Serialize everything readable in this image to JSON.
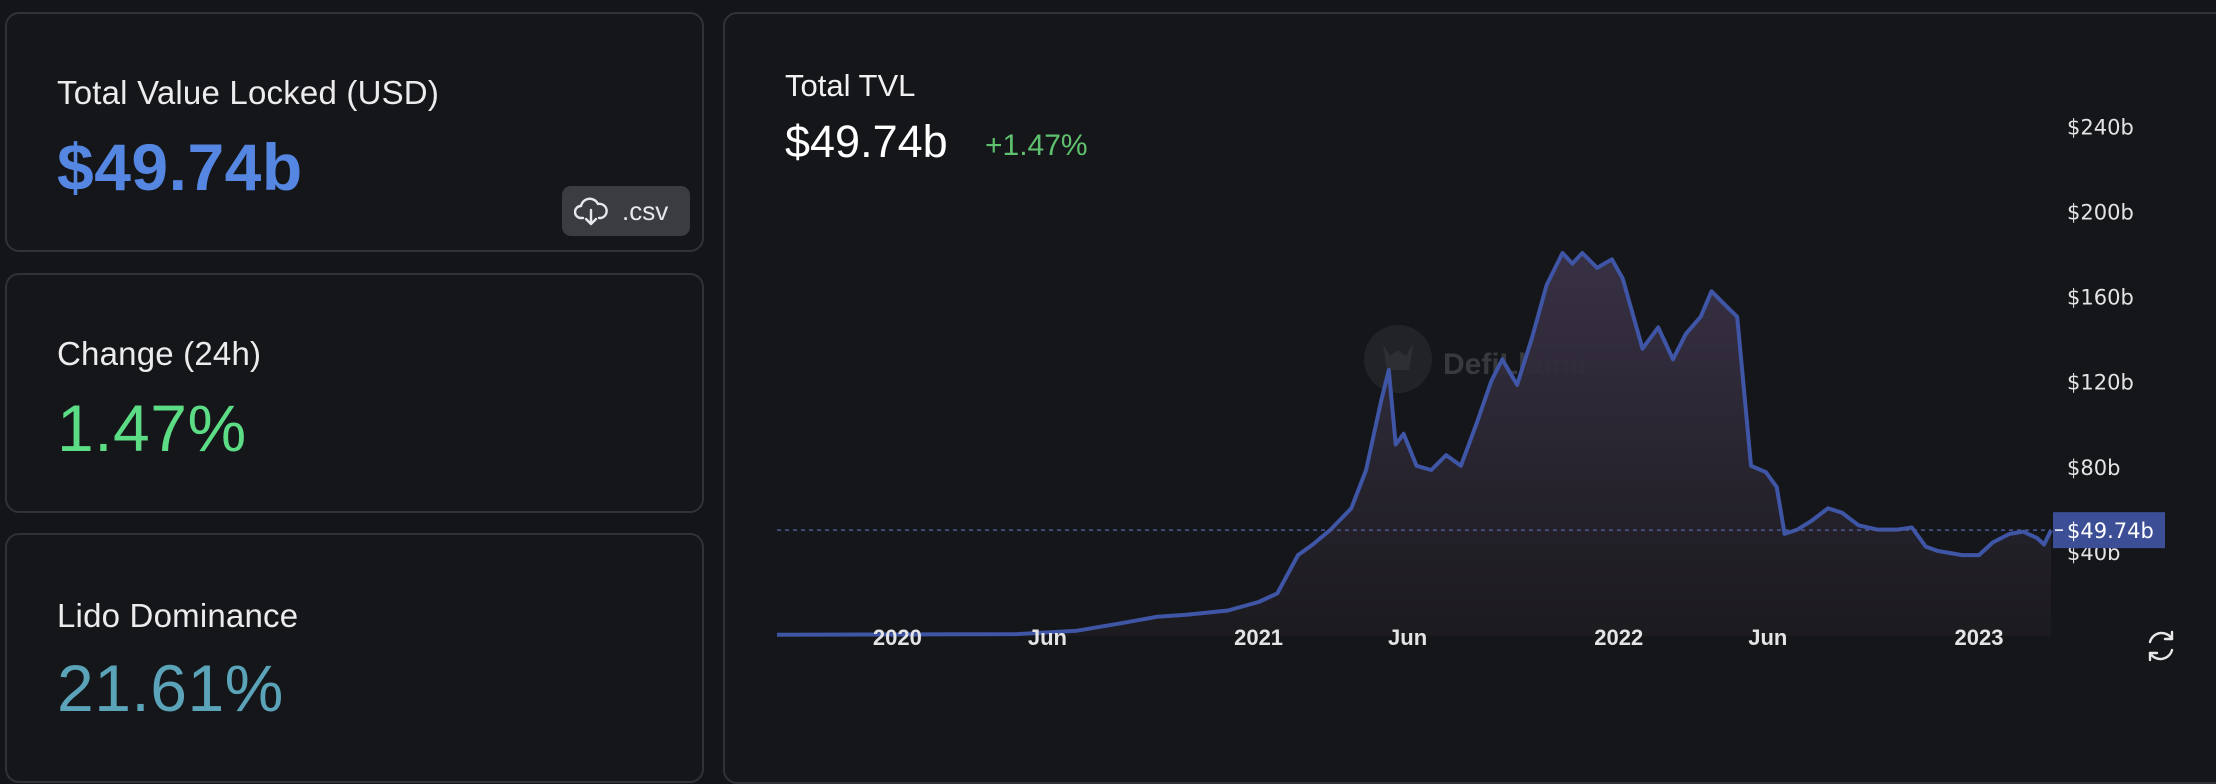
{
  "stats": {
    "tvl_label": "Total Value Locked (USD)",
    "tvl_value": "$49.74b",
    "csv_label": ".csv",
    "change_label": "Change (24h)",
    "change_value": "1.47%",
    "dominance_label": "Lido Dominance",
    "dominance_value": "21.61%"
  },
  "chart": {
    "title": "Total TVL",
    "current_value": "$49.74b",
    "change": "+1.47%",
    "watermark": "DefiLlama",
    "colors": {
      "line": "#3f55a5",
      "area_top": "#3a3247",
      "area_bottom": "#1c1b1f",
      "current_marker": "#3c4f96",
      "grid_text": "#e4e4e6",
      "background": "#151619"
    }
  },
  "chart_data": {
    "type": "area",
    "title": "Total TVL",
    "xlabel": "",
    "ylabel": "",
    "ylim": [
      0,
      250
    ],
    "y_unit": "billion USD",
    "y_ticks": [
      40,
      80,
      120,
      160,
      200,
      240
    ],
    "y_tick_labels": [
      "$40b",
      "$80b",
      "$120b",
      "$160b",
      "$200b",
      "$240b"
    ],
    "x_ticks": [
      "2020-01-01",
      "2020-06-01",
      "2021-01-01",
      "2021-06-01",
      "2022-01-01",
      "2022-06-01",
      "2023-01-01"
    ],
    "x_tick_labels": [
      "2020",
      "Jun",
      "2021",
      "Jun",
      "2022",
      "Jun",
      "2023"
    ],
    "current_value_label": "$49.74b",
    "current_value": 49.74,
    "x_range": [
      "2019-09-01",
      "2023-03-15"
    ],
    "series": [
      {
        "values": [
          [
            "2019-09-01",
            0.6
          ],
          [
            "2019-12-01",
            0.7
          ],
          [
            "2020-03-01",
            0.8
          ],
          [
            "2020-05-01",
            0.9
          ],
          [
            "2020-07-01",
            2.5
          ],
          [
            "2020-08-15",
            6
          ],
          [
            "2020-09-20",
            9
          ],
          [
            "2020-10-20",
            10
          ],
          [
            "2020-12-01",
            12
          ],
          [
            "2021-01-01",
            16
          ],
          [
            "2021-01-20",
            20
          ],
          [
            "2021-02-10",
            38
          ],
          [
            "2021-02-25",
            43
          ],
          [
            "2021-03-15",
            50
          ],
          [
            "2021-04-05",
            60
          ],
          [
            "2021-04-20",
            78
          ],
          [
            "2021-05-05",
            110
          ],
          [
            "2021-05-13",
            125
          ],
          [
            "2021-05-20",
            90
          ],
          [
            "2021-05-28",
            95
          ],
          [
            "2021-06-10",
            80
          ],
          [
            "2021-06-25",
            78
          ],
          [
            "2021-07-10",
            85
          ],
          [
            "2021-07-25",
            80
          ],
          [
            "2021-08-10",
            100
          ],
          [
            "2021-08-25",
            120
          ],
          [
            "2021-09-05",
            130
          ],
          [
            "2021-09-20",
            118
          ],
          [
            "2021-10-05",
            140
          ],
          [
            "2021-10-20",
            165
          ],
          [
            "2021-11-05",
            180
          ],
          [
            "2021-11-15",
            175
          ],
          [
            "2021-11-25",
            180
          ],
          [
            "2021-12-10",
            173
          ],
          [
            "2021-12-25",
            177
          ],
          [
            "2022-01-05",
            168
          ],
          [
            "2022-01-25",
            135
          ],
          [
            "2022-02-10",
            145
          ],
          [
            "2022-02-25",
            130
          ],
          [
            "2022-03-10",
            142
          ],
          [
            "2022-03-25",
            150
          ],
          [
            "2022-04-05",
            162
          ],
          [
            "2022-04-20",
            155
          ],
          [
            "2022-05-01",
            150
          ],
          [
            "2022-05-09",
            110
          ],
          [
            "2022-05-15",
            80
          ],
          [
            "2022-05-30",
            77
          ],
          [
            "2022-06-10",
            70
          ],
          [
            "2022-06-18",
            48
          ],
          [
            "2022-07-01",
            50
          ],
          [
            "2022-07-15",
            54
          ],
          [
            "2022-08-01",
            60
          ],
          [
            "2022-08-15",
            58
          ],
          [
            "2022-09-01",
            52
          ],
          [
            "2022-09-20",
            50
          ],
          [
            "2022-10-10",
            50
          ],
          [
            "2022-10-25",
            51
          ],
          [
            "2022-11-08",
            42
          ],
          [
            "2022-11-20",
            40
          ],
          [
            "2022-12-15",
            38
          ],
          [
            "2023-01-01",
            38
          ],
          [
            "2023-01-15",
            44
          ],
          [
            "2023-02-01",
            48
          ],
          [
            "2023-02-15",
            49
          ],
          [
            "2023-03-01",
            46
          ],
          [
            "2023-03-08",
            43
          ],
          [
            "2023-03-15",
            49.74
          ]
        ]
      }
    ]
  }
}
